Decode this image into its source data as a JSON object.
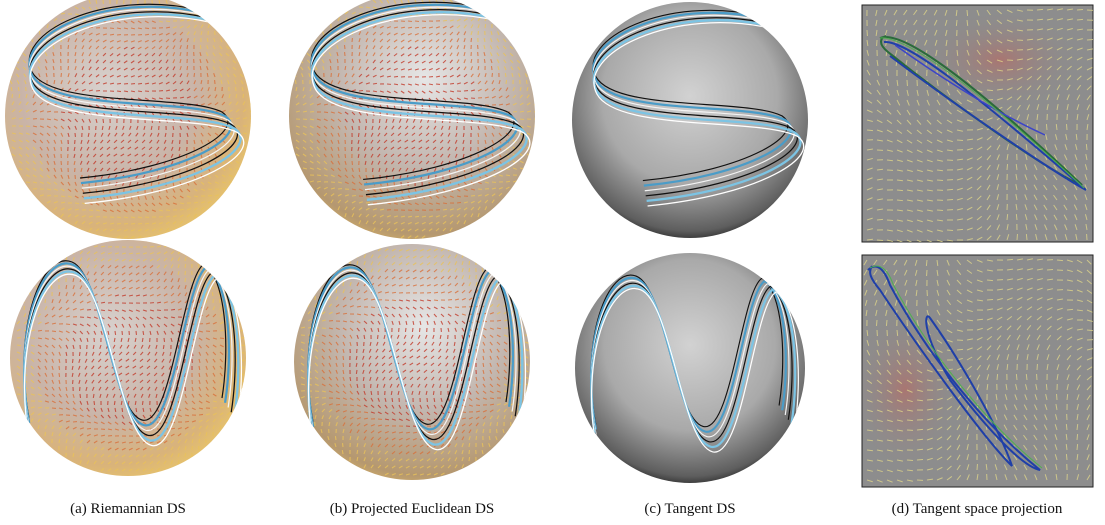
{
  "captions": [
    "(a) Riemannian DS",
    "(b) Projected Euclidean DS",
    "(c) Tangent DS",
    "(d) Tangent space projection"
  ]
}
